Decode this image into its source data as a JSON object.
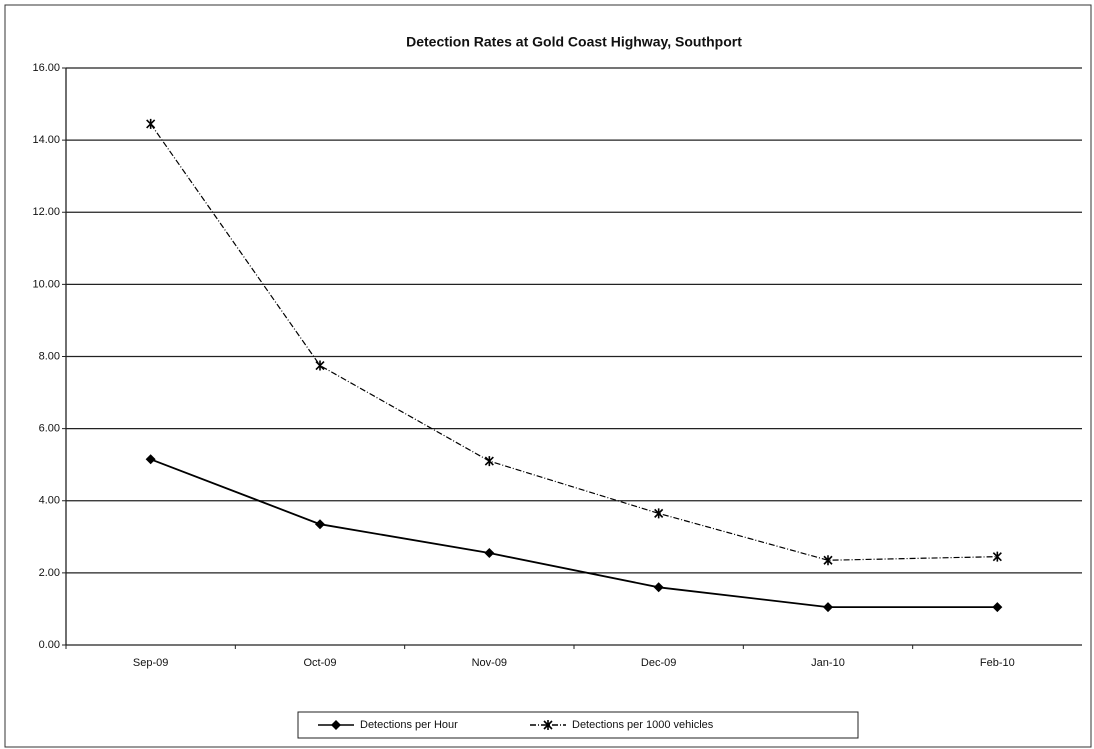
{
  "chart_data": {
    "type": "line",
    "title": "Detection Rates at Gold Coast Highway, Southport",
    "categories": [
      "Sep-09",
      "Oct-09",
      "Nov-09",
      "Dec-09",
      "Jan-10",
      "Feb-10"
    ],
    "series": [
      {
        "name": "Detections per Hour",
        "color": "#000000",
        "dash": false,
        "marker": "diamond",
        "values": [
          5.15,
          3.35,
          2.55,
          1.6,
          1.05,
          1.05
        ]
      },
      {
        "name": "Detections per 1000 vehicles",
        "color": "#000000",
        "dash": true,
        "marker": "star",
        "values": [
          14.45,
          7.75,
          5.1,
          3.65,
          2.35,
          2.45
        ]
      }
    ],
    "ylim": [
      0,
      16
    ],
    "yticks": [
      {
        "value": 0,
        "label": "0.00"
      },
      {
        "value": 2,
        "label": "2.00"
      },
      {
        "value": 4,
        "label": "4.00"
      },
      {
        "value": 6,
        "label": "6.00"
      },
      {
        "value": 8,
        "label": "8.00"
      },
      {
        "value": 10,
        "label": "10.00"
      },
      {
        "value": 12,
        "label": "12.00"
      },
      {
        "value": 14,
        "label": "14.00"
      },
      {
        "value": 16,
        "label": "16.00"
      }
    ],
    "grid": true,
    "legend": "bottom"
  }
}
